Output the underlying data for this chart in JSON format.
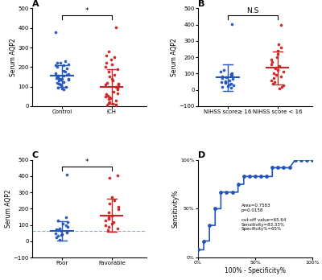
{
  "panel_A": {
    "title": "A",
    "ylabel": "Serum AQP2",
    "groups": [
      "Control",
      "ICH"
    ],
    "colors": [
      "#2255bb",
      "#cc2222"
    ],
    "means": [
      155,
      100
    ],
    "sds": [
      55,
      90
    ],
    "ylim": [
      0,
      500
    ],
    "yticks": [
      0,
      100,
      200,
      300,
      400,
      500
    ],
    "sig": "*",
    "control_dots": [
      220,
      215,
      230,
      210,
      200,
      220,
      210,
      195,
      180,
      175,
      170,
      165,
      160,
      155,
      150,
      145,
      140,
      140,
      135,
      130,
      125,
      120,
      115,
      110,
      105,
      100,
      95,
      90,
      85,
      380,
      155,
      150,
      145,
      140,
      135
    ],
    "ich_dots": [
      405,
      280,
      260,
      250,
      240,
      220,
      215,
      200,
      190,
      175,
      160,
      150,
      140,
      130,
      120,
      110,
      100,
      95,
      85,
      75,
      65,
      60,
      55,
      50,
      45,
      40,
      35,
      30,
      20,
      15,
      10,
      5,
      5,
      110,
      115
    ]
  },
  "panel_B": {
    "title": "B",
    "ylabel": "Serum AQP2",
    "groups": [
      "NIHSS score≥ 16",
      "NIHSS score < 16"
    ],
    "colors": [
      "#2255bb",
      "#cc2222"
    ],
    "means": [
      75,
      135
    ],
    "sds": [
      80,
      100
    ],
    "ylim": [
      -100,
      500
    ],
    "yticks": [
      -100,
      0,
      100,
      200,
      300,
      400,
      500
    ],
    "sig": "N.S",
    "nihss_high_dots": [
      405,
      120,
      110,
      100,
      95,
      90,
      85,
      80,
      75,
      70,
      65,
      60,
      55,
      50,
      50,
      45,
      40,
      35,
      30,
      25,
      20,
      15
    ],
    "nihss_low_dots": [
      400,
      280,
      260,
      240,
      220,
      200,
      185,
      170,
      155,
      145,
      130,
      120,
      110,
      100,
      90,
      80,
      70,
      60,
      50,
      40,
      30,
      20,
      10
    ]
  },
  "panel_C": {
    "title": "C",
    "ylabel": "Serum AQP2",
    "groups": [
      "Poor",
      "Favorable"
    ],
    "colors": [
      "#2255bb",
      "#cc2222"
    ],
    "means": [
      65,
      160
    ],
    "sds": [
      60,
      100
    ],
    "ylim": [
      -100,
      500
    ],
    "yticks": [
      -100,
      0,
      100,
      200,
      300,
      400,
      500
    ],
    "sig": "*",
    "cutoff": 65,
    "poor_dots": [
      410,
      150,
      130,
      120,
      110,
      100,
      90,
      80,
      75,
      70,
      65,
      60,
      55,
      50,
      45,
      40,
      35,
      25,
      10
    ],
    "favorable_dots": [
      405,
      390,
      270,
      250,
      230,
      210,
      195,
      175,
      160,
      150,
      140,
      130,
      120,
      110,
      100,
      90,
      80,
      70
    ]
  },
  "panel_D": {
    "title": "D",
    "xlabel": "100% - Specificity%",
    "ylabel": "Sensitivity%",
    "text_line1": "Area=0.7583",
    "text_line2": "p=0.0158",
    "text_line3": "",
    "text_line4": "cut-off value=65.64",
    "text_line5": "Sensitivity=83.33%",
    "text_line6": "Specificity%=65%",
    "roc_x": [
      0,
      0.0,
      0.05,
      0.05,
      0.1,
      0.1,
      0.15,
      0.15,
      0.2,
      0.2,
      0.25,
      0.3,
      0.35,
      0.35,
      0.4,
      0.4,
      0.45,
      0.5,
      0.55,
      0.6,
      0.65,
      0.65,
      0.7,
      0.75,
      0.8,
      0.85,
      0.9,
      0.95,
      1.0
    ],
    "roc_y": [
      0,
      0.08,
      0.08,
      0.17,
      0.17,
      0.33,
      0.33,
      0.5,
      0.5,
      0.67,
      0.67,
      0.67,
      0.67,
      0.75,
      0.75,
      0.83,
      0.83,
      0.83,
      0.83,
      0.83,
      0.83,
      0.92,
      0.92,
      0.92,
      0.92,
      1.0,
      1.0,
      1.0,
      1.0
    ],
    "dot_x": [
      0.0,
      0.05,
      0.1,
      0.15,
      0.2,
      0.25,
      0.3,
      0.35,
      0.4,
      0.45,
      0.5,
      0.55,
      0.6,
      0.65,
      0.7,
      0.75,
      0.8,
      0.85,
      0.9,
      0.95,
      1.0
    ],
    "dot_y": [
      0.08,
      0.17,
      0.33,
      0.5,
      0.67,
      0.67,
      0.67,
      0.75,
      0.83,
      0.83,
      0.83,
      0.83,
      0.83,
      0.92,
      0.92,
      0.92,
      0.92,
      1.0,
      1.0,
      1.0,
      1.0
    ]
  },
  "background": "#ffffff"
}
